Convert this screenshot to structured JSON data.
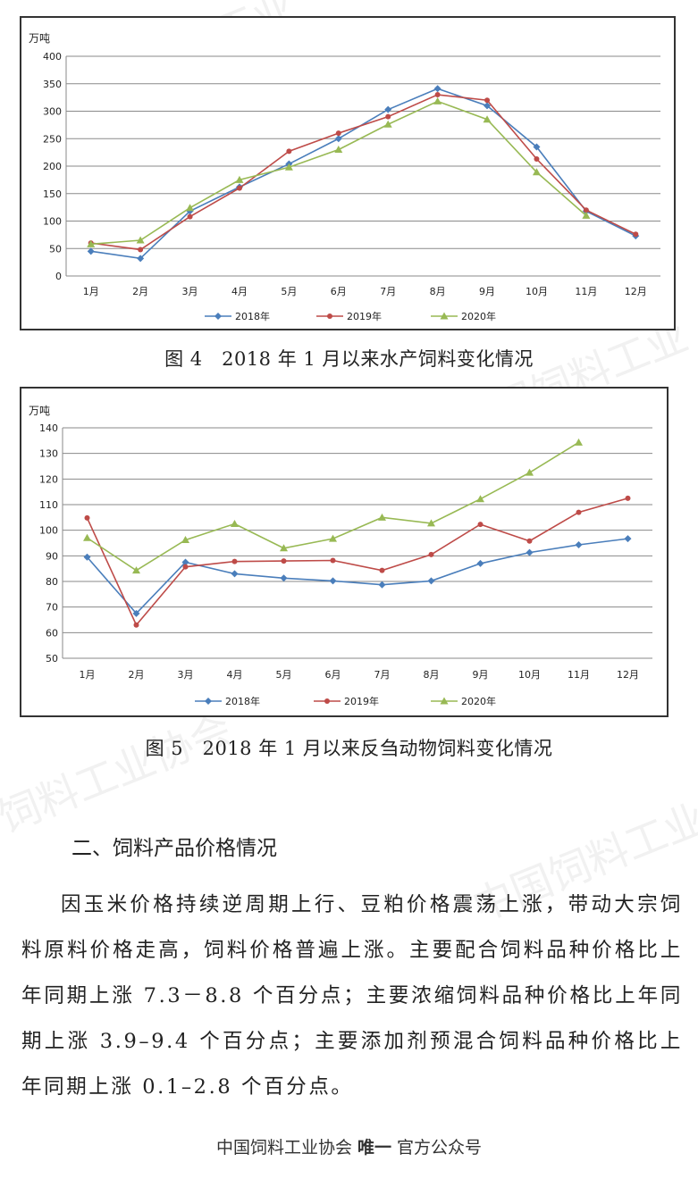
{
  "charts": [
    {
      "id": "chart1",
      "unit": "万吨",
      "caption": "图 4　2018 年 1 月以来水产饲料变化情况"
    },
    {
      "id": "chart2",
      "unit": "万吨",
      "caption": "图 5　2018 年 1 月以来反刍动物饲料变化情况"
    }
  ],
  "chart_data": [
    {
      "type": "line",
      "title": "",
      "ylabel": "万吨",
      "categories": [
        "1月",
        "2月",
        "3月",
        "4月",
        "5月",
        "6月",
        "7月",
        "8月",
        "9月",
        "10月",
        "11月",
        "12月"
      ],
      "ylim": [
        0,
        400
      ],
      "yticks": [
        0,
        50,
        100,
        150,
        200,
        250,
        300,
        350,
        400
      ],
      "grid": true,
      "legend": "bottom",
      "series": [
        {
          "name": "2018年",
          "color": "#4a7ebb",
          "marker": "diamond",
          "values": [
            45,
            32,
            118,
            162,
            204,
            250,
            303,
            341,
            310,
            235,
            118,
            73
          ]
        },
        {
          "name": "2019年",
          "color": "#be4b48",
          "marker": "circle",
          "values": [
            60,
            48,
            108,
            160,
            227,
            260,
            290,
            330,
            320,
            213,
            120,
            76
          ]
        },
        {
          "name": "2020年",
          "color": "#98b954",
          "marker": "triangle",
          "values": [
            58,
            65,
            124,
            175,
            198,
            230,
            276,
            318,
            285,
            189,
            110,
            null
          ]
        }
      ]
    },
    {
      "type": "line",
      "title": "",
      "ylabel": "万吨",
      "categories": [
        "1月",
        "2月",
        "3月",
        "4月",
        "5月",
        "6月",
        "7月",
        "8月",
        "9月",
        "10月",
        "11月",
        "12月"
      ],
      "ylim": [
        50,
        140
      ],
      "yticks": [
        50,
        60,
        70,
        80,
        90,
        100,
        110,
        120,
        130,
        140
      ],
      "grid": true,
      "legend": "bottom",
      "series": [
        {
          "name": "2018年",
          "color": "#4a7ebb",
          "marker": "diamond",
          "values": [
            89.5,
            67.5,
            87.5,
            83,
            81.3,
            80.2,
            78.7,
            80.2,
            87,
            91.3,
            94.3,
            96.7
          ]
        },
        {
          "name": "2019年",
          "color": "#be4b48",
          "marker": "circle",
          "values": [
            104.8,
            63,
            85.7,
            87.8,
            88,
            88.2,
            84.3,
            90.5,
            102.3,
            95.8,
            107,
            112.5
          ]
        },
        {
          "name": "2020年",
          "color": "#98b954",
          "marker": "triangle",
          "values": [
            97,
            84.3,
            96.2,
            102.5,
            93,
            96.7,
            105,
            102.7,
            112.2,
            122.5,
            134.3,
            null
          ]
        }
      ]
    }
  ],
  "section": {
    "title": "二、饲料产品价格情况",
    "paragraph": "因玉米价格持续逆周期上行、豆粕价格震荡上涨，带动大宗饲料原料价格走高，饲料价格普遍上涨。主要配合饲料品种价格比上年同期上涨 7.3－8.8 个百分点；主要浓缩饲料品种价格比上年同期上涨 3.9–9.4 个百分点；主要添加剂预混合饲料品种价格比上年同期上涨 0.1–2.8 个百分点。"
  },
  "footer": {
    "prefix": "中国饲料工业协会 ",
    "bold": "唯一",
    "suffix": " 官方公众号"
  },
  "watermark": {
    "text1": "中国饲料工业",
    "text2": "中国饲料工业",
    "text3": "饲料工业协会",
    "text4": "中国饲料工业"
  }
}
